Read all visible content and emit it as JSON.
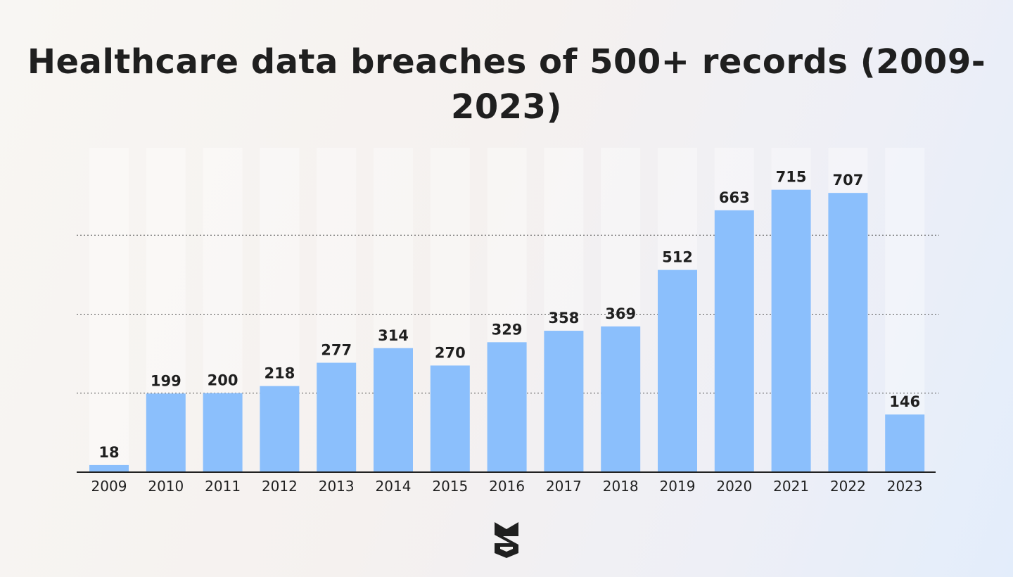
{
  "chart_data": {
    "type": "bar",
    "title": "Healthcare data breaches of 500+ records (2009-2023)",
    "categories": [
      "2009",
      "2010",
      "2011",
      "2012",
      "2013",
      "2014",
      "2015",
      "2016",
      "2017",
      "2018",
      "2019",
      "2020",
      "2021",
      "2022",
      "2023"
    ],
    "values": [
      18,
      199,
      200,
      218,
      277,
      314,
      270,
      329,
      358,
      369,
      512,
      663,
      715,
      707,
      146
    ],
    "xlabel": "",
    "ylabel": "",
    "ylim": [
      0,
      800
    ],
    "grid": "dotted horizontal lines, no tick labels",
    "legend": "none",
    "colors": {
      "bar": "#8bbffc",
      "text": "#1f1f1f",
      "axis": "#222222",
      "grid": "#555555"
    }
  },
  "logo": {
    "icon": "brand-logo-icon"
  }
}
